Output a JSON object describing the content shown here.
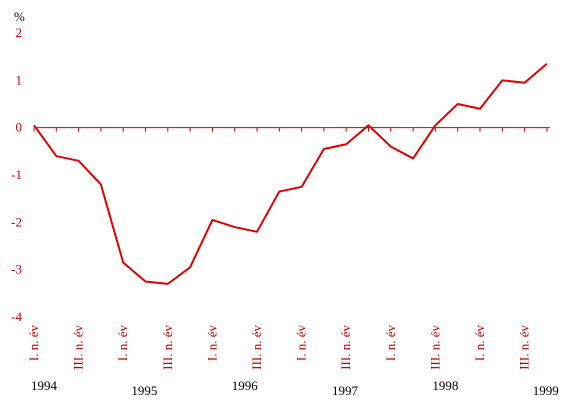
{
  "chart_data": {
    "type": "line",
    "title": "",
    "xlabel": "",
    "ylabel": "%",
    "ylim": [
      -4,
      2
    ],
    "yticks": [
      2,
      1,
      0,
      -1,
      -2,
      -3,
      -4
    ],
    "grid": false,
    "colors": {
      "line": "#e00000",
      "axis": "#cc0000",
      "ticks": "#cc0000"
    },
    "x": [
      "1994 I.",
      "1994 II.",
      "1994 III.",
      "1994 IV.",
      "1995 I.",
      "1995 II.",
      "1995 III.",
      "1995 IV.",
      "1996 I.",
      "1996 II.",
      "1996 III.",
      "1996 IV.",
      "1997 I.",
      "1997 II.",
      "1997 III.",
      "1997 IV.",
      "1998 I.",
      "1998 II.",
      "1998 III.",
      "1998 IV.",
      "1999 I.",
      "1999 II.",
      "1999 III.",
      "1999 IV."
    ],
    "series": [
      {
        "values": [
          0.05,
          -0.6,
          -0.7,
          -1.2,
          -2.85,
          -3.25,
          -3.3,
          -2.95,
          -1.95,
          -2.1,
          -2.2,
          -1.35,
          -1.25,
          -0.45,
          -0.35,
          0.05,
          -0.4,
          -0.65,
          0.05,
          0.5,
          0.4,
          1.0,
          0.95,
          1.35
        ]
      }
    ],
    "x_tick_labels": [
      {
        "index": 0,
        "text": "I. n. év"
      },
      {
        "index": 2,
        "text": "III. n. év"
      },
      {
        "index": 4,
        "text": "I. n. év"
      },
      {
        "index": 6,
        "text": "III. n. év"
      },
      {
        "index": 8,
        "text": "I. n. év"
      },
      {
        "index": 10,
        "text": "III. n. év"
      },
      {
        "index": 12,
        "text": "I. n. év"
      },
      {
        "index": 14,
        "text": "III. n. év"
      },
      {
        "index": 16,
        "text": "I. n. év"
      },
      {
        "index": 18,
        "text": "III. n. év"
      },
      {
        "index": 20,
        "text": "I. n. év"
      },
      {
        "index": 22,
        "text": "III. n. év"
      }
    ],
    "year_labels": [
      {
        "index": 0,
        "text": "1994"
      },
      {
        "index": 4.5,
        "text": "1995"
      },
      {
        "index": 9,
        "text": "1996"
      },
      {
        "index": 13.5,
        "text": "1997"
      },
      {
        "index": 18,
        "text": "1998"
      },
      {
        "index": 22.5,
        "text": "1999"
      }
    ]
  }
}
